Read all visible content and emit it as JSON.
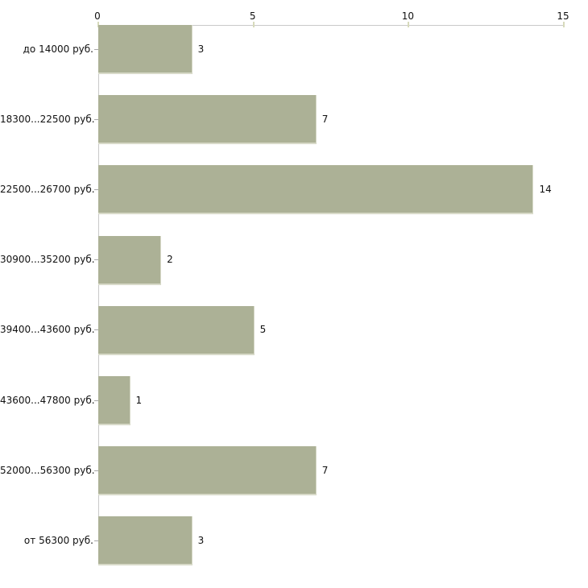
{
  "chart_data": {
    "type": "bar",
    "orientation": "horizontal",
    "title": "",
    "xlabel": "",
    "ylabel": "",
    "categories": [
      "до 14000 руб.",
      "18300...22500 руб.",
      "22500...26700 руб.",
      "30900...35200 руб.",
      "39400...43600 руб.",
      "43600...47800 руб.",
      "52000...56300 руб.",
      "от 56300 руб."
    ],
    "values": [
      3,
      7,
      14,
      2,
      5,
      1,
      7,
      3
    ],
    "value_labels": [
      "3",
      "7",
      "14",
      "2",
      "5",
      "1",
      "7",
      "3"
    ],
    "xlim": [
      0,
      15
    ],
    "xticks": [
      "0",
      "5",
      "10",
      "15"
    ],
    "xtick_values": [
      0,
      5,
      10,
      15
    ],
    "axis_position": "top",
    "grid": false,
    "legend": false,
    "colors": {
      "bar_fill": "#acb196",
      "bar_edge": "#d8dac9",
      "axis_line": "#c9c9c9",
      "x_tick_mark": "#d7dabb",
      "category_tick": "#a8a8a8",
      "text": "#111111",
      "background": "#ffffff"
    }
  }
}
